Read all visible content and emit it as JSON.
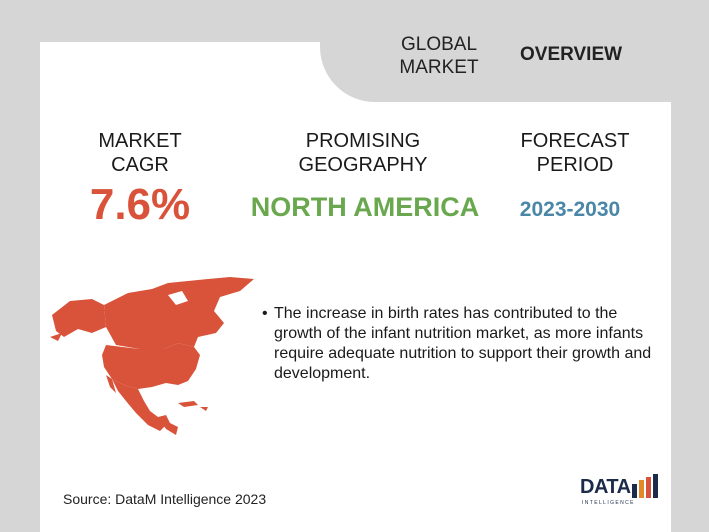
{
  "header": {
    "global_market": "GLOBAL\nMARKET",
    "overview": "OVERVIEW"
  },
  "stats": {
    "cagr_label": "MARKET\nCAGR",
    "cagr_value": "7.6%",
    "geography_label": "PROMISING\nGEOGRAPHY",
    "geography_value": "NORTH AMERICA",
    "period_label": "FORECAST\nPERIOD",
    "period_value": "2023-2030"
  },
  "bullet": {
    "marker": "•",
    "text": "The increase in birth rates has contributed to the growth of the infant nutrition market, as more infants require adequate nutrition to support their growth and development."
  },
  "footer": {
    "source": "Source: DataM Intelligence 2023",
    "logo_word": "DATA",
    "logo_sub": "INTELLIGENCE"
  },
  "colors": {
    "accent_red": "#d9533a",
    "accent_green": "#6aa84f",
    "accent_blue": "#4a86a8",
    "map_fill": "#d9533a"
  },
  "icons": {
    "map": "north-america-map-icon",
    "logo": "datam-logo-icon"
  }
}
